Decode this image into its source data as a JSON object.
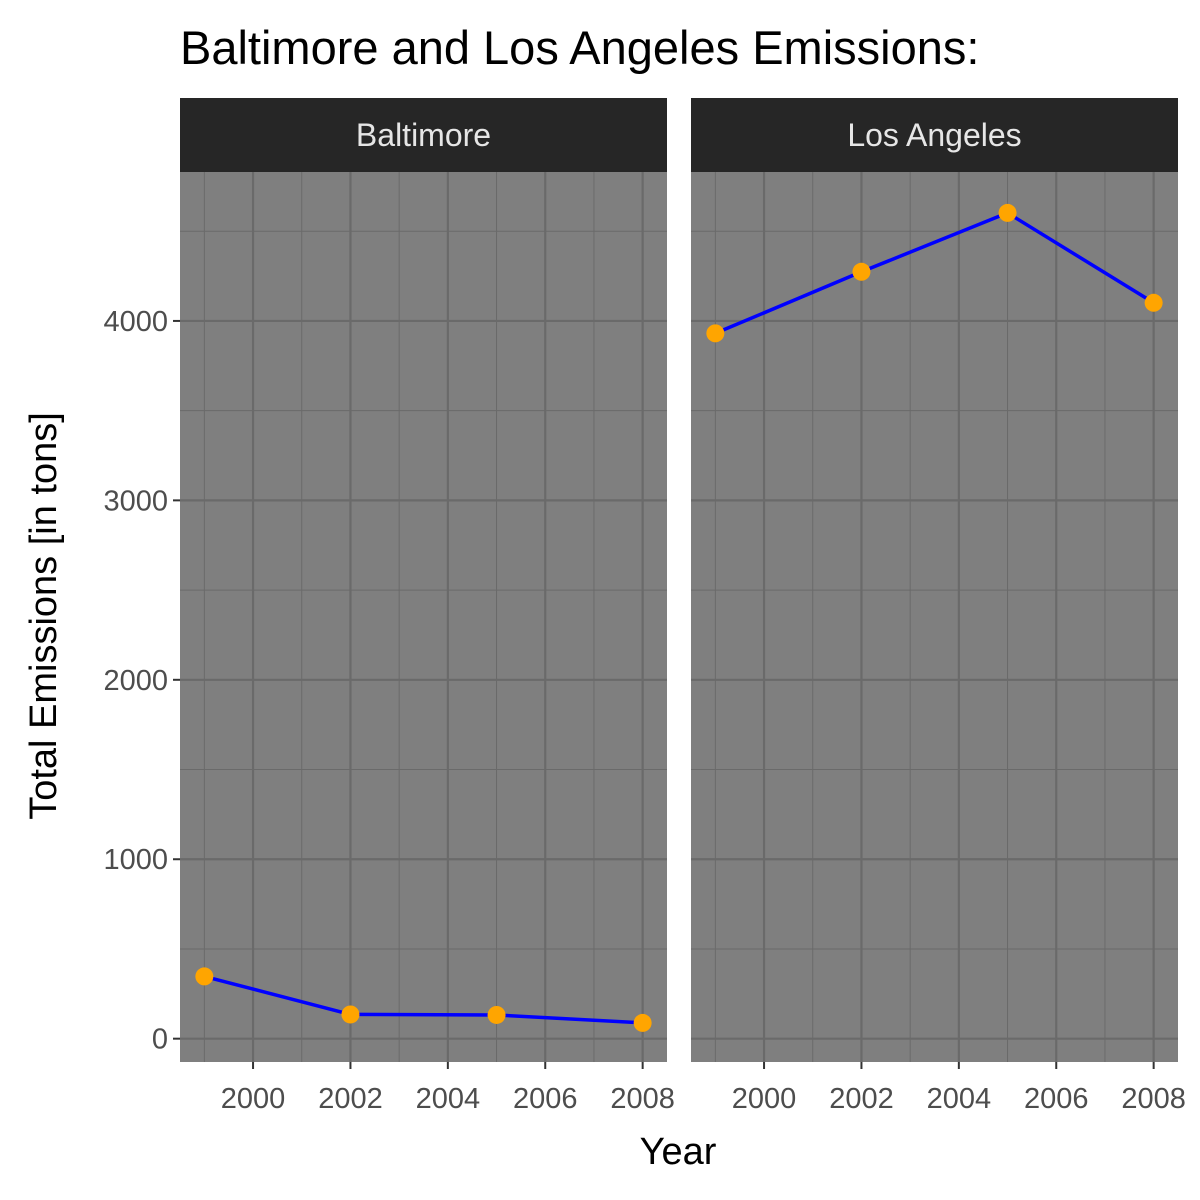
{
  "chart_data": {
    "type": "line",
    "title": "Baltimore and Los Angeles Emissions:",
    "xlabel": "Year",
    "ylabel": "Total Emissions [in tons]",
    "x": [
      1999,
      2002,
      2005,
      2008
    ],
    "xlim": [
      1998.5,
      2008.5
    ],
    "ylim": [
      -130,
      4830
    ],
    "x_ticks": [
      2000,
      2002,
      2004,
      2006,
      2008
    ],
    "y_ticks": [
      0,
      1000,
      2000,
      3000,
      4000
    ],
    "grid": true,
    "legend": "none",
    "colors": {
      "line": "#0000ff",
      "point": "#ffa500",
      "panel_background": "#7f7f7f",
      "grid": "#6a6a6a",
      "strip_background": "#262626"
    },
    "facets": [
      {
        "label": "Baltimore",
        "values": [
          347,
          135,
          132,
          88
        ]
      },
      {
        "label": "Los Angeles",
        "values": [
          3931,
          4274,
          4602,
          4101
        ]
      }
    ]
  }
}
